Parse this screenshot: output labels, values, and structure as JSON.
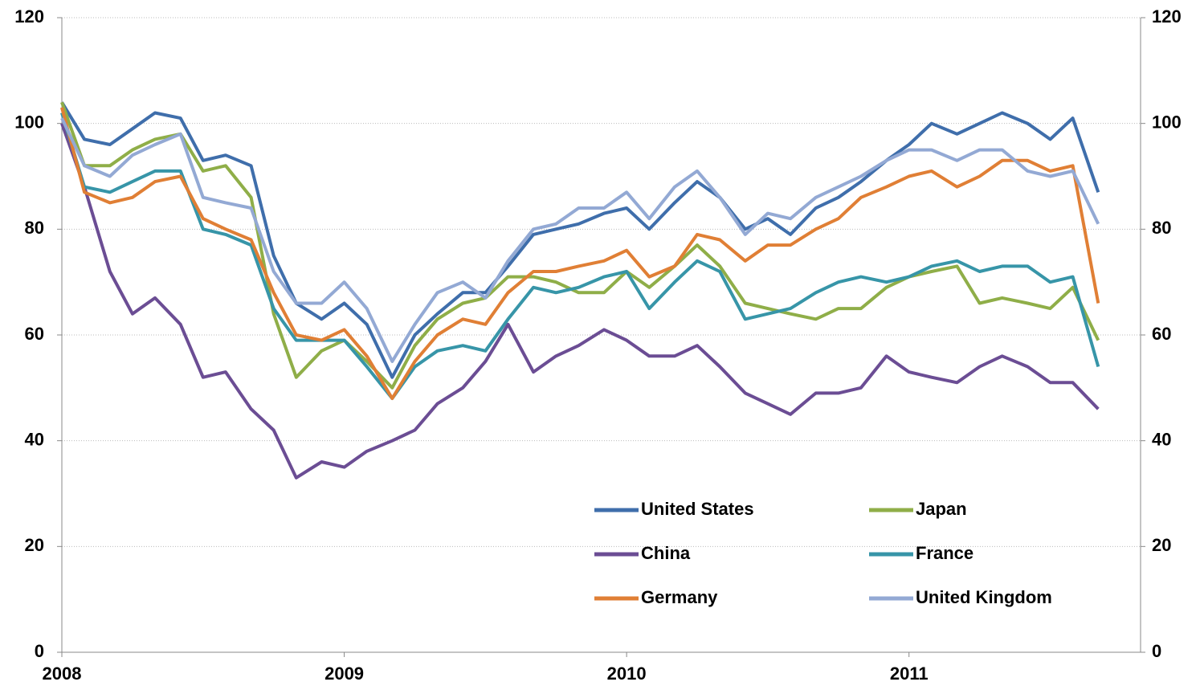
{
  "chart_data": {
    "type": "line",
    "x": [
      2008,
      2008.08,
      2008.17,
      2008.25,
      2008.33,
      2008.42,
      2008.5,
      2008.58,
      2008.67,
      2008.75,
      2008.83,
      2008.92,
      2009,
      2009.08,
      2009.17,
      2009.25,
      2009.33,
      2009.42,
      2009.5,
      2009.58,
      2009.67,
      2009.75,
      2009.83,
      2009.92,
      2010,
      2010.08,
      2010.17,
      2010.25,
      2010.33,
      2010.42,
      2010.5,
      2010.58,
      2010.67,
      2010.75,
      2010.83,
      2010.92,
      2011,
      2011.08,
      2011.17,
      2011.25,
      2011.33,
      2011.42,
      2011.5,
      2011.58,
      2011.67
    ],
    "series": [
      {
        "name": "United States",
        "color": "#3f6eab",
        "values": [
          104,
          97,
          96,
          99,
          102,
          101,
          93,
          94,
          92,
          75,
          66,
          63,
          66,
          62,
          52,
          60,
          64,
          68,
          68,
          73,
          79,
          80,
          81,
          83,
          84,
          80,
          85,
          89,
          86,
          80,
          82,
          79,
          84,
          86,
          89,
          93,
          96,
          100,
          98,
          100,
          102,
          100,
          97,
          101,
          87
        ]
      },
      {
        "name": "Japan",
        "color": "#8fae48",
        "values": [
          104,
          92,
          92,
          95,
          97,
          98,
          91,
          92,
          86,
          64,
          52,
          57,
          59,
          55,
          50,
          58,
          63,
          66,
          67,
          71,
          71,
          70,
          68,
          68,
          72,
          69,
          73,
          77,
          73,
          66,
          65,
          64,
          63,
          65,
          65,
          69,
          71,
          72,
          73,
          66,
          67,
          66,
          65,
          69,
          59
        ]
      },
      {
        "name": "China",
        "color": "#6b4d94",
        "values": [
          100,
          88,
          72,
          64,
          67,
          62,
          52,
          53,
          46,
          42,
          33,
          36,
          35,
          38,
          40,
          42,
          47,
          50,
          55,
          62,
          53,
          56,
          58,
          61,
          59,
          56,
          56,
          58,
          54,
          49,
          47,
          45,
          49,
          49,
          50,
          56,
          53,
          52,
          51,
          54,
          56,
          54,
          51,
          51,
          46
        ]
      },
      {
        "name": "France",
        "color": "#3795a8",
        "values": [
          102,
          88,
          87,
          89,
          91,
          91,
          80,
          79,
          77,
          65,
          59,
          59,
          59,
          54,
          48,
          54,
          57,
          58,
          57,
          63,
          69,
          68,
          69,
          71,
          72,
          65,
          70,
          74,
          72,
          63,
          64,
          65,
          68,
          70,
          71,
          70,
          71,
          73,
          74,
          72,
          73,
          73,
          70,
          71,
          54
        ]
      },
      {
        "name": "Germany",
        "color": "#e07f35",
        "values": [
          103,
          87,
          85,
          86,
          89,
          90,
          82,
          80,
          78,
          68,
          60,
          59,
          61,
          56,
          48,
          55,
          60,
          63,
          62,
          68,
          72,
          72,
          73,
          74,
          76,
          71,
          73,
          79,
          78,
          74,
          77,
          77,
          80,
          82,
          86,
          88,
          90,
          91,
          88,
          90,
          93,
          93,
          91,
          92,
          66
        ]
      },
      {
        "name": "United Kingdom",
        "color": "#93a9d4",
        "values": [
          101,
          92,
          90,
          94,
          96,
          98,
          86,
          85,
          84,
          72,
          66,
          66,
          70,
          65,
          55,
          62,
          68,
          70,
          67,
          74,
          80,
          81,
          84,
          84,
          87,
          82,
          88,
          91,
          86,
          79,
          83,
          82,
          86,
          88,
          90,
          93,
          95,
          95,
          93,
          95,
          95,
          91,
          90,
          91,
          81
        ]
      }
    ],
    "xlim": [
      2008,
      2011.82
    ],
    "xticks": [
      2008,
      2009,
      2010,
      2011
    ],
    "ylim": [
      0,
      120
    ],
    "yticks": [
      0,
      20,
      40,
      60,
      80,
      100,
      120
    ],
    "y2lim": [
      0,
      120
    ],
    "y2ticks": [
      0,
      20,
      40,
      60,
      80,
      100,
      120
    ],
    "grid": true
  }
}
